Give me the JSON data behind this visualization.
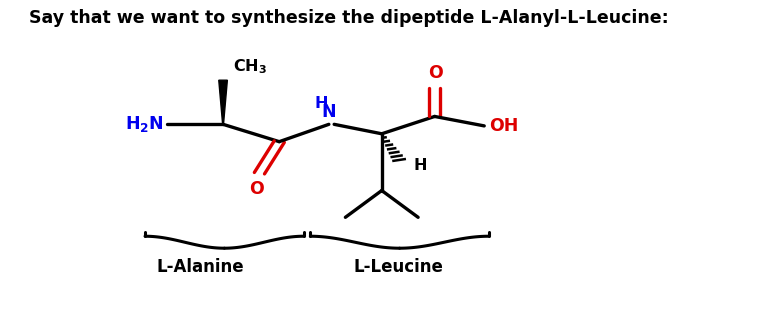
{
  "title": "Say that we want to synthesize the dipeptide L-Alanyl-L-Leucine:",
  "title_fontsize": 12.5,
  "title_fontweight": "bold",
  "title_color": "#000000",
  "bg_color": "#ffffff",
  "label_alanine": "L-Alanine",
  "label_leucine": "L-Leucine",
  "label_fontsize": 12,
  "label_fontweight": "bold",
  "color_blue": "#0000EE",
  "color_red": "#DD0000",
  "color_black": "#000000",
  "xlim": [
    0,
    10
  ],
  "ylim": [
    0,
    10
  ]
}
